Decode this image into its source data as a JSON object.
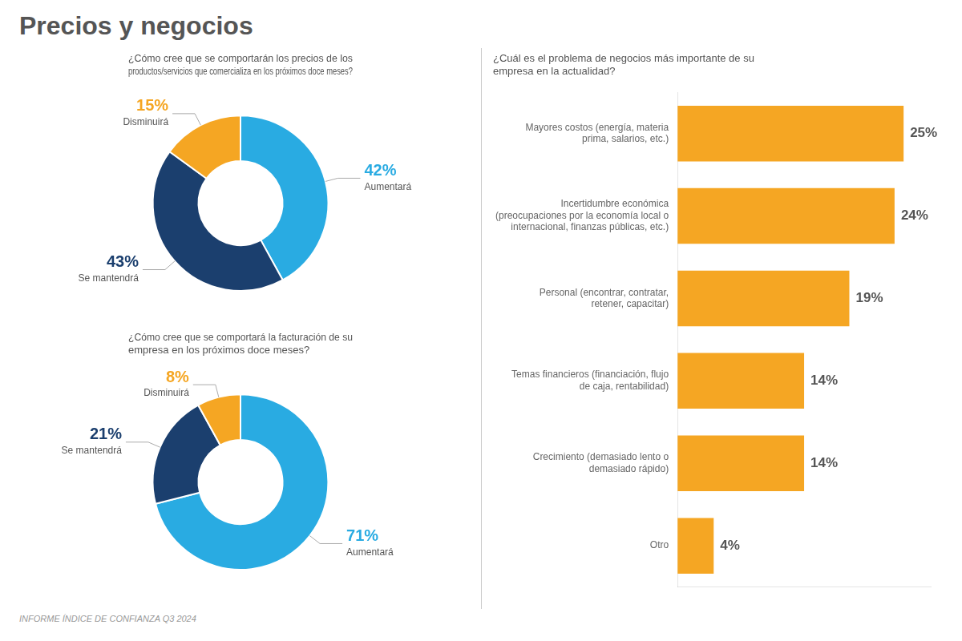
{
  "title": "Precios y negocios",
  "annotations": [
    "INFORME ÍNDICE DE CONFIANZA Q3 2024"
  ],
  "chart_data": [
    {
      "type": "doughnut",
      "title": "¿Cómo cree que se comportarán los precios de los\nproductos/servicios que comercializa en los próximos doce meses?",
      "categories": [
        "Aumentará",
        "Se mantendrá",
        "Disminuirá"
      ],
      "values": [
        42,
        43,
        15
      ],
      "value_labels": [
        "42%",
        "43%",
        "15%"
      ],
      "colors": [
        "#29ABE2",
        "#1B3F6E",
        "#F5A623"
      ],
      "data_labels": true
    },
    {
      "type": "doughnut",
      "title": "¿Cómo cree que se comportará la facturación de su\nempresa en los próximos doce meses?",
      "categories": [
        "Aumentará",
        "Se mantendrá",
        "Disminuirá"
      ],
      "values": [
        71,
        21,
        8
      ],
      "value_labels": [
        "71%",
        "21%",
        "8%"
      ],
      "colors": [
        "#29ABE2",
        "#1B3F6E",
        "#F5A623"
      ],
      "data_labels": true
    },
    {
      "type": "bar",
      "orientation": "horizontal",
      "title": "¿Cuál es el problema de negocios más importante de su\nempresa en la actualidad?",
      "categories": [
        "Mayores costos (energía, materia\nprima, salarios, etc.)",
        "Incertidumbre económica\n(preocupaciones por la economía local o\ninternacional, finanzas públicas, etc.)",
        "Personal (encontrar, contratar,\nretener, capacitar)",
        "Temas financieros (financiación, flujo\nde caja, rentabilidad)",
        "Crecimiento (demasiado lento o\ndemasiado rápido)",
        "Otro"
      ],
      "values": [
        25,
        24,
        19,
        14,
        14,
        4
      ],
      "value_labels": [
        "25%",
        "24%",
        "19%",
        "14%",
        "14%",
        "4%"
      ],
      "color": "#F5A623",
      "xlim": [
        0,
        28
      ],
      "tick_labels": "y",
      "grid": false,
      "data_labels": true
    }
  ]
}
